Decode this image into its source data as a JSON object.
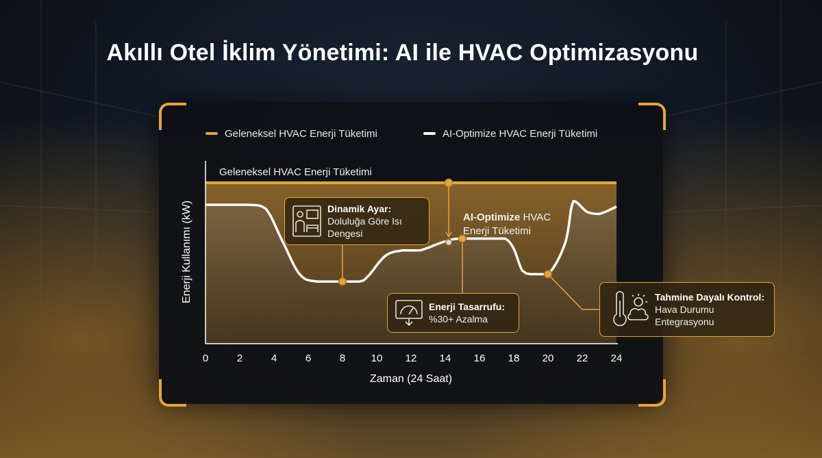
{
  "title": "Akıllı Otel İklim Yönetimi: AI ile HVAC Optimizasyonu",
  "colors": {
    "accent": "#e8a43a",
    "traditional": "#e8a43a",
    "optimized": "#ffffff"
  },
  "legend": {
    "items": [
      {
        "label": "Geleneksel HVAC Enerji Tüketimi",
        "color": "#e8a43a"
      },
      {
        "label": "AI-Optimize HVAC Enerji Tüketimi",
        "color": "#ffffff"
      }
    ]
  },
  "annotations": {
    "traditional_line_label": "Geleneksel HVAC Enerji Tüketimi",
    "optimized_label_bold": "AI-Optimize",
    "optimized_label_rest": " HVAC",
    "optimized_label_line2": "Enerji Tüketimi"
  },
  "callouts": {
    "dynamic": {
      "title": "Dinamik Ayar:",
      "line1": "Doluluğa Göre Isı",
      "line2": "Dengesi",
      "icon": "hotel-room-icon"
    },
    "savings": {
      "title": "Enerji Tasarrufu:",
      "line1": "%30+ Azalma",
      "icon": "energy-meter-icon"
    },
    "predictive": {
      "title": "Tahmine Dayalı Kontrol:",
      "line1": "Hava Durumu",
      "line2": "Entegrasyonu",
      "icon": "thermometer-weather-icon"
    }
  },
  "chart_data": {
    "type": "line",
    "xlabel": "Zaman (24 Saat)",
    "ylabel": "Enerji Kullanımı (kW)",
    "xlim": [
      0,
      24
    ],
    "x_ticks": [
      0,
      2,
      4,
      6,
      8,
      10,
      12,
      14,
      16,
      18,
      20,
      22,
      24
    ],
    "ylim": [
      0,
      100
    ],
    "series": [
      {
        "name": "Geleneksel HVAC Enerji Tüketimi",
        "x": [
          0,
          24
        ],
        "y": [
          88,
          88
        ]
      },
      {
        "name": "AI-Optimize HVAC Enerji Tüketimi",
        "x": [
          0,
          2.5,
          3.5,
          4.5,
          5.5,
          6.5,
          8,
          9,
          9.5,
          10.5,
          11.5,
          12.5,
          14,
          15,
          17.5,
          18.5,
          19,
          20,
          21,
          21.5,
          22.3,
          23,
          24
        ],
        "y": [
          76,
          76,
          74,
          56,
          38,
          34,
          34,
          34,
          37,
          48,
          51,
          51,
          56,
          57.5,
          57.5,
          40,
          38,
          38,
          55,
          78,
          72,
          71,
          75
        ]
      }
    ],
    "markers": [
      {
        "x": 14.2,
        "y": 88,
        "series": "Geleneksel HVAC Enerji Tüketimi"
      },
      {
        "x": 8,
        "y": 34,
        "series": "AI-Optimize HVAC Enerji Tüketimi"
      },
      {
        "x": 14.2,
        "y": 55.5,
        "series": "AI-Optimize HVAC Enerji Tüketimi"
      },
      {
        "x": 15,
        "y": 57.5,
        "series": "AI-Optimize HVAC Enerji Tüketimi"
      },
      {
        "x": 20,
        "y": 38,
        "series": "AI-Optimize HVAC Enerji Tüketimi"
      }
    ],
    "grid": false,
    "legend_position": "top"
  }
}
